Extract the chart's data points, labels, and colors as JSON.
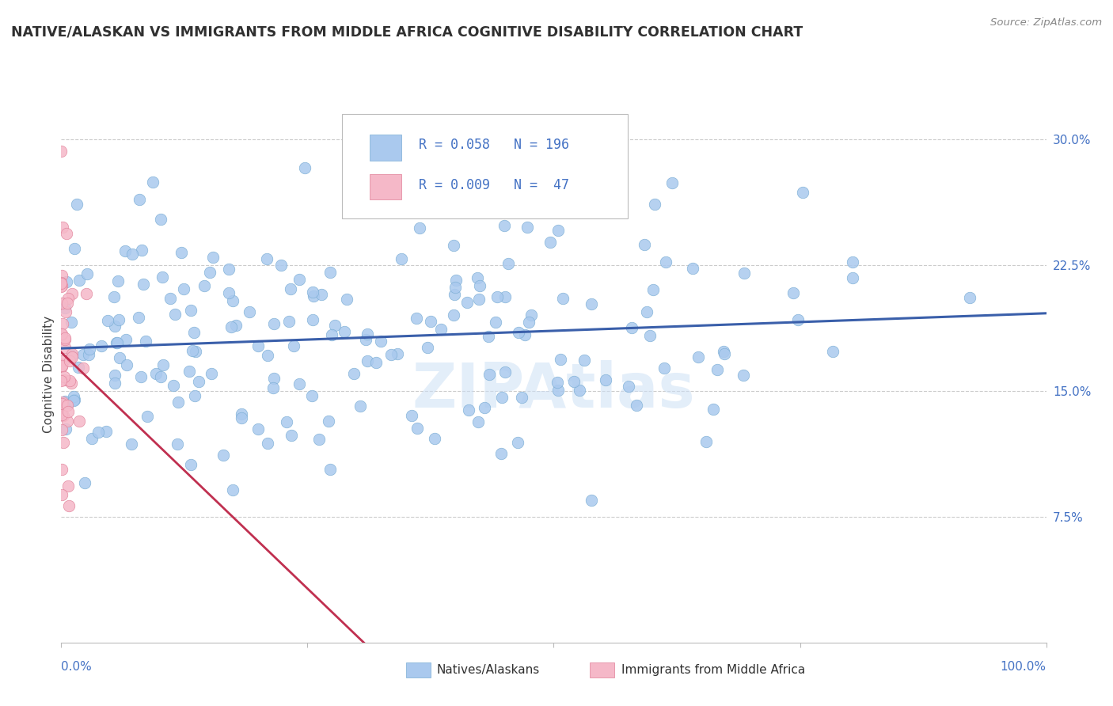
{
  "title": "NATIVE/ALASKAN VS IMMIGRANTS FROM MIDDLE AFRICA COGNITIVE DISABILITY CORRELATION CHART",
  "source": "Source: ZipAtlas.com",
  "ylabel": "Cognitive Disability",
  "xlim": [
    0,
    1.0
  ],
  "ylim": [
    0,
    0.32
  ],
  "ytick_positions": [
    0.075,
    0.15,
    0.225,
    0.3
  ],
  "ytick_labels": [
    "7.5%",
    "15.0%",
    "22.5%",
    "30.0%"
  ],
  "series1_color": "#aac9ee",
  "series1_edge": "#7aadd4",
  "series2_color": "#f5b8c8",
  "series2_edge": "#e08098",
  "trend1_color": "#3a5faa",
  "trend2_color": "#c03050",
  "legend_r1": "0.058",
  "legend_n1": "196",
  "legend_r2": "0.009",
  "legend_n2": "47",
  "legend_label1": "Natives/Alaskans",
  "legend_label2": "Immigrants from Middle Africa",
  "watermark": "ZIPAtlas",
  "background_color": "#ffffff",
  "grid_color": "#cccccc",
  "title_color": "#303030",
  "axis_label_color": "#404040",
  "tick_color": "#4472c4",
  "source_color": "#888888",
  "seed": 42,
  "n1": 196,
  "n2": 47
}
